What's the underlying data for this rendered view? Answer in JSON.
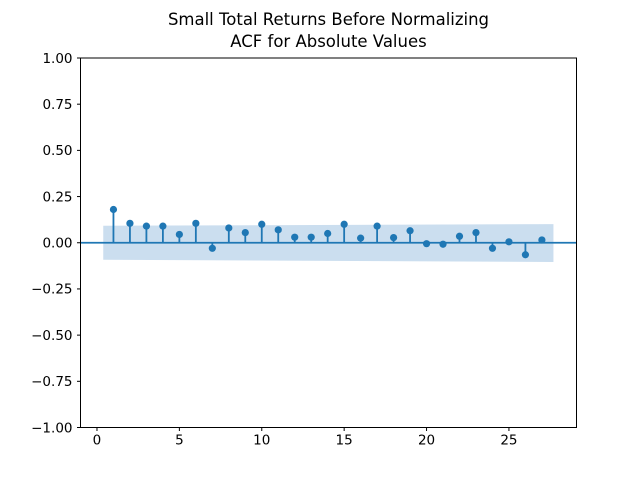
{
  "chart_data": {
    "type": "stem",
    "title_lines": [
      "Small Total Returns Before Normalizing",
      "ACF for Absolute Values"
    ],
    "xlabel": "",
    "ylabel": "",
    "x": [
      1,
      2,
      3,
      4,
      5,
      6,
      7,
      8,
      9,
      10,
      11,
      12,
      13,
      14,
      15,
      16,
      17,
      18,
      19,
      20,
      21,
      22,
      23,
      24,
      25,
      26,
      27
    ],
    "values": [
      0.18,
      0.105,
      0.09,
      0.09,
      0.045,
      0.105,
      -0.03,
      0.08,
      0.055,
      0.1,
      0.07,
      0.03,
      0.03,
      0.05,
      0.1,
      0.025,
      0.09,
      0.028,
      0.065,
      -0.005,
      -0.008,
      0.035,
      0.055,
      -0.03,
      0.005,
      -0.065,
      0.015
    ],
    "xticks": [
      0,
      5,
      10,
      15,
      20,
      25
    ],
    "yticks": [
      1.0,
      0.75,
      0.5,
      0.25,
      0.0,
      -0.25,
      -0.5,
      -0.75,
      -1.0
    ],
    "xlim": [
      -1.0,
      29.1
    ],
    "ylim": [
      -1.0,
      1.0
    ],
    "grid": false,
    "legend": null,
    "zero_line_value": 0,
    "conf_band": {
      "x_start": 0.38,
      "x_end": 27.7,
      "upper_start": 0.092,
      "upper_end": 0.101,
      "lower_start": -0.092,
      "lower_end": -0.104
    },
    "colors": {
      "accent": "#1f77b4",
      "band": "#cbdeef",
      "axis": "#000000",
      "background": "#ffffff"
    }
  }
}
